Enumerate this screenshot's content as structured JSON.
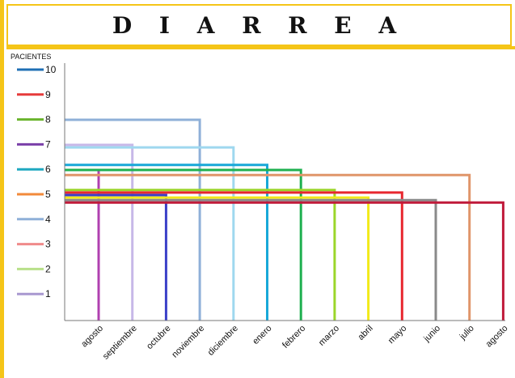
{
  "title": "D I A R R E A",
  "chart_data": {
    "type": "line",
    "title": "D I A R R E A",
    "xlabel": "",
    "ylabel": "PACIENTES",
    "ylim": [
      0,
      10
    ],
    "y_ticks": [
      1,
      2,
      3,
      4,
      5,
      6,
      7,
      8,
      9,
      10
    ],
    "categories": [
      "agosto",
      "septiembre",
      "octubre",
      "noviembre",
      "diciembre",
      "enero",
      "febrero",
      "marzo",
      "abril",
      "mayo",
      "junio",
      "julio",
      "agosto"
    ],
    "series": [
      {
        "category": "agosto",
        "value": 6.0,
        "color": "#b040b0"
      },
      {
        "category": "septiembre",
        "value": 7.0,
        "color": "#c7b8e8"
      },
      {
        "category": "octubre",
        "value": 5.0,
        "color": "#3a3fc8"
      },
      {
        "category": "noviembre",
        "value": 8.0,
        "color": "#8fb0d8"
      },
      {
        "category": "diciembre",
        "value": 6.9,
        "color": "#9fd8ef"
      },
      {
        "category": "enero",
        "value": 6.2,
        "color": "#18a8d8"
      },
      {
        "category": "febrero",
        "value": 6.0,
        "color": "#1fb050"
      },
      {
        "category": "marzo",
        "value": 5.2,
        "color": "#9bd62a"
      },
      {
        "category": "abril",
        "value": 4.9,
        "color": "#f2ea1a"
      },
      {
        "category": "mayo",
        "value": 5.1,
        "color": "#e8272f"
      },
      {
        "category": "junio",
        "value": 4.8,
        "color": "#8a8a8a"
      },
      {
        "category": "julio",
        "value": 5.8,
        "color": "#e0956a"
      },
      {
        "category": "agosto",
        "value": 4.7,
        "color": "#c01a3a"
      }
    ],
    "legend": [
      {
        "label": "10",
        "color": "#1f6fb5"
      },
      {
        "label": "9",
        "color": "#e63b3b"
      },
      {
        "label": "8",
        "color": "#6ab42d"
      },
      {
        "label": "7",
        "color": "#7a3fa8"
      },
      {
        "label": "6",
        "color": "#1fa8c0"
      },
      {
        "label": "5",
        "color": "#f28a3a"
      },
      {
        "label": "4",
        "color": "#8fb0d8"
      },
      {
        "label": "3",
        "color": "#f08a8a"
      },
      {
        "label": "2",
        "color": "#b8e08a"
      },
      {
        "label": "1",
        "color": "#a898d0"
      }
    ],
    "legend_position": "left",
    "grid": false
  }
}
